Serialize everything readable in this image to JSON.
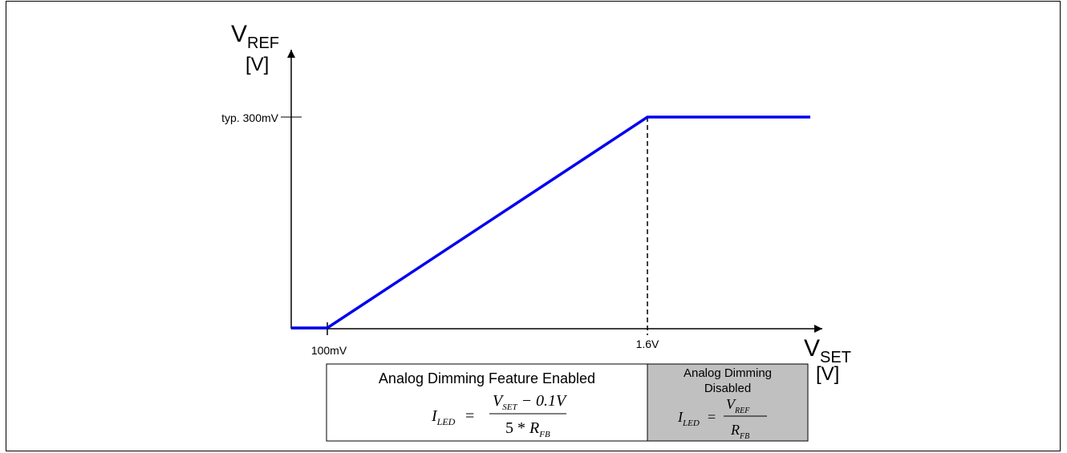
{
  "chart_data": {
    "type": "line",
    "y_axis": {
      "symbol": "V",
      "subscript": "REF",
      "unit": "[V]"
    },
    "x_axis": {
      "symbol": "V",
      "subscript": "SET",
      "unit": "[V]"
    },
    "y_tick_label": "typ. 300mV",
    "x_tick_labels": [
      "100mV",
      "1.6V"
    ],
    "series": [
      {
        "x": [
          0.0,
          0.1,
          1.6,
          2.1
        ],
        "y": [
          0.0,
          0.0,
          0.3,
          0.3
        ]
      }
    ],
    "xlim": [
      0,
      2.1
    ],
    "ylim": [
      0,
      0.3
    ],
    "line_color": "#0000ee"
  },
  "regions": {
    "enabled": {
      "title": "Analog Dimming Feature Enabled",
      "formula": {
        "lhs": "I",
        "lhs_sub": "LED",
        "eq": "=",
        "num_v": "V",
        "num_sub": "SET",
        "num_rest": " − 0.1V",
        "den_pre": "5 * ",
        "den_r": "R",
        "den_sub": "FB"
      }
    },
    "disabled": {
      "title_line1": "Analog Dimming",
      "title_line2": "Disabled",
      "formula": {
        "lhs": "I",
        "lhs_sub": "LED",
        "eq": "=",
        "num_v": "V",
        "num_sub": "REF",
        "den_r": "R",
        "den_sub": "FB"
      },
      "fill": "#c0c0c0"
    }
  }
}
